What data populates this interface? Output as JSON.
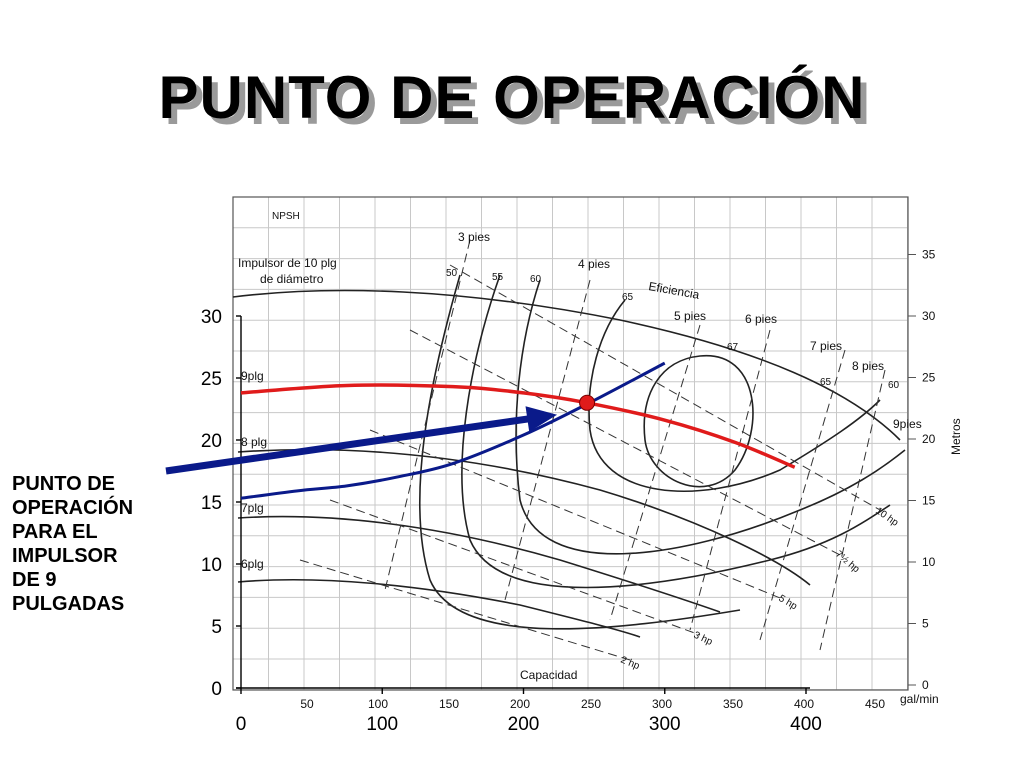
{
  "title": "PUNTO DE OPERACIÓN",
  "caption_lines": [
    "PUNTO DE",
    "OPERACIÓN",
    "PARA EL",
    "IMPULSOR",
    "DE 9",
    "PULGADAS"
  ],
  "colors": {
    "system_curve": "#0a1a8a",
    "impeller_9_curve": "#e01b1b",
    "operating_point": "#e01b1b",
    "arrow": "#0a1a8a",
    "title_shadow": "#9a9a9a"
  },
  "scan_labels": {
    "npsh": "NPSH",
    "impeller_line1": "Impulsor de 10 plg",
    "impeller_line2": "de diámetro",
    "eficiencia": "Eficiencia",
    "capacidad": "Capacidad",
    "metros": "Metros",
    "gal_min": "gal/min",
    "impeller_sizes": [
      "9plg",
      "8 plg",
      "7plg",
      "6plg"
    ],
    "npsh_labels": [
      "3 pies",
      "4 pies",
      "5 pies",
      "6 pies",
      "7 pies",
      "8 pies",
      "9pies"
    ],
    "efficiency_labels": [
      "50",
      "55",
      "60",
      "65",
      "67",
      "65",
      "60"
    ],
    "hp_labels": [
      "10 hp",
      "7½ hp",
      "5 hp",
      "3 hp",
      "2 hp"
    ],
    "metros_ticks": [
      "35",
      "30",
      "25",
      "20",
      "15",
      "10",
      "5",
      "0"
    ],
    "galmin_ticks": [
      "50",
      "100",
      "150",
      "200",
      "250",
      "300",
      "350",
      "400",
      "450"
    ]
  },
  "chart_data": {
    "type": "line",
    "title": "PUNTO DE OPERACIÓN",
    "xlabel": "",
    "ylabel": "",
    "xlim": [
      0,
      400
    ],
    "ylim": [
      0,
      30
    ],
    "x_ticks": [
      "0",
      "100",
      "200",
      "300",
      "400"
    ],
    "y_ticks": [
      "0",
      "5",
      "10",
      "15",
      "20",
      "25",
      "30"
    ],
    "series": [
      {
        "name": "",
        "x": [
          0,
          75,
          150,
          200,
          245,
          300,
          350,
          392
        ],
        "y": [
          23.8,
          24.4,
          24.3,
          23.8,
          23.0,
          21.6,
          19.8,
          17.8
        ]
      },
      {
        "name": "",
        "x": [
          0,
          40,
          75,
          110,
          150,
          200,
          245,
          300
        ],
        "y": [
          15.3,
          15.9,
          16.3,
          17.0,
          18.1,
          20.4,
          22.9,
          26.2
        ]
      }
    ],
    "operating_point": {
      "x": 245,
      "y": 23.0
    },
    "grid": false,
    "legend": "none"
  }
}
